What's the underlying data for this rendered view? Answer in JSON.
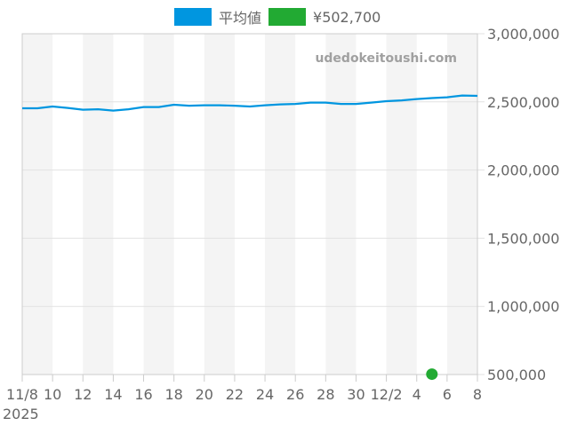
{
  "legend": {
    "items": [
      {
        "label": "平均値",
        "color": "#0096e0"
      },
      {
        "label": "¥502,700",
        "color": "#22aa33"
      }
    ]
  },
  "watermark": "udedokeitoushi.com",
  "chart_data": {
    "type": "line",
    "title": "",
    "xlabel": "",
    "ylabel": "",
    "x_tick_labels": [
      "11/8",
      "10",
      "12",
      "14",
      "16",
      "18",
      "20",
      "22",
      "24",
      "26",
      "28",
      "30",
      "12/2",
      "4",
      "6",
      "8"
    ],
    "x_year_label": "2025",
    "y_tick_labels": [
      "3,000,000",
      "2,500,000",
      "2,000,000",
      "1,500,000",
      "1,000,000",
      "500,000"
    ],
    "ylim": [
      500000,
      3000000
    ],
    "y_ticks": [
      3000000,
      2500000,
      2000000,
      1500000,
      1000000,
      500000
    ],
    "grid": true,
    "legend_position": "top",
    "x": [
      "11/8",
      "11/9",
      "11/10",
      "11/11",
      "11/12",
      "11/13",
      "11/14",
      "11/15",
      "11/16",
      "11/17",
      "11/18",
      "11/19",
      "11/20",
      "11/21",
      "11/22",
      "11/23",
      "11/24",
      "11/25",
      "11/26",
      "11/27",
      "11/28",
      "11/29",
      "11/30",
      "12/1",
      "12/2",
      "12/3",
      "12/4",
      "12/5",
      "12/6",
      "12/7",
      "12/8"
    ],
    "series": [
      {
        "name": "平均値",
        "color": "#0096e0",
        "type": "line",
        "values": [
          2453000,
          2453000,
          2466000,
          2456000,
          2443000,
          2446000,
          2436000,
          2446000,
          2462000,
          2462000,
          2479000,
          2472000,
          2475000,
          2475000,
          2472000,
          2466000,
          2475000,
          2482000,
          2485000,
          2495000,
          2495000,
          2485000,
          2485000,
          2495000,
          2505000,
          2511000,
          2521000,
          2528000,
          2534000,
          2547000,
          2544000
        ]
      },
      {
        "name": "¥502,700",
        "color": "#22aa33",
        "type": "scatter",
        "points": [
          {
            "x": "12/5",
            "y": 502700
          }
        ]
      }
    ]
  }
}
